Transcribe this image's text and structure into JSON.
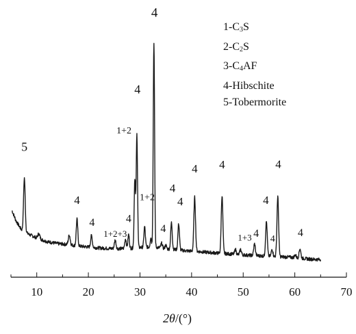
{
  "chart_data": {
    "type": "line",
    "xlabel": "2θ/(°)",
    "ylabel": "",
    "xlim": [
      5,
      70
    ],
    "x_ticks": [
      10,
      20,
      30,
      40,
      50,
      60,
      70
    ],
    "y_ticks_shown": false,
    "grid": false,
    "legend_position": "top-right",
    "legend": [
      {
        "prefix": "1-",
        "formula": [
          [
            "C",
            ""
          ],
          [
            "3",
            "sub"
          ],
          [
            "S",
            ""
          ]
        ]
      },
      {
        "prefix": "2-",
        "formula": [
          [
            "C",
            ""
          ],
          [
            "2",
            "sub"
          ],
          [
            "S",
            ""
          ]
        ]
      },
      {
        "prefix": "3-",
        "formula": [
          [
            "C",
            ""
          ],
          [
            "4",
            "sub"
          ],
          [
            "AF",
            ""
          ]
        ]
      },
      {
        "prefix": "4-",
        "formula": [
          [
            "Hibschite",
            ""
          ]
        ]
      },
      {
        "prefix": "5-",
        "formula": [
          [
            "Tobermorite",
            ""
          ]
        ]
      }
    ],
    "series": [
      {
        "color": "#1a1a1a",
        "baseline_points": [
          [
            5.2,
            0.218
          ],
          [
            6,
            0.175
          ],
          [
            7,
            0.14
          ],
          [
            8.5,
            0.12
          ],
          [
            10,
            0.105
          ],
          [
            12,
            0.09
          ],
          [
            14,
            0.082
          ],
          [
            16,
            0.078
          ],
          [
            18,
            0.072
          ],
          [
            20,
            0.068
          ],
          [
            22,
            0.064
          ],
          [
            24,
            0.062
          ],
          [
            26,
            0.061
          ],
          [
            28,
            0.062
          ],
          [
            30,
            0.066
          ],
          [
            32,
            0.068
          ],
          [
            33.5,
            0.066
          ],
          [
            35,
            0.06
          ],
          [
            37,
            0.057
          ],
          [
            39,
            0.052
          ],
          [
            41,
            0.05
          ],
          [
            43,
            0.046
          ],
          [
            45,
            0.043
          ],
          [
            47,
            0.04
          ],
          [
            49,
            0.037
          ],
          [
            51,
            0.034
          ],
          [
            53,
            0.032
          ],
          [
            55,
            0.03
          ],
          [
            57,
            0.028
          ],
          [
            59,
            0.026
          ],
          [
            61,
            0.022
          ],
          [
            63,
            0.018
          ],
          [
            65,
            0.016
          ]
        ],
        "peaks": [
          {
            "x": 7.6,
            "height": 0.22,
            "width": 0.16
          },
          {
            "x": 10.4,
            "height": 0.02,
            "width": 0.2
          },
          {
            "x": 16.3,
            "height": 0.04,
            "width": 0.18
          },
          {
            "x": 17.8,
            "height": 0.11,
            "width": 0.15
          },
          {
            "x": 20.6,
            "height": 0.048,
            "width": 0.16
          },
          {
            "x": 25.2,
            "height": 0.035,
            "width": 0.16
          },
          {
            "x": 27.2,
            "height": 0.04,
            "width": 0.15
          },
          {
            "x": 27.8,
            "height": 0.058,
            "width": 0.14
          },
          {
            "x": 29.0,
            "height": 0.285,
            "width": 0.13
          },
          {
            "x": 29.4,
            "height": 0.465,
            "width": 0.13
          },
          {
            "x": 30.9,
            "height": 0.085,
            "width": 0.14
          },
          {
            "x": 32.1,
            "height": 0.04,
            "width": 0.12
          },
          {
            "x": 32.7,
            "height": 0.845,
            "width": 0.13
          },
          {
            "x": 34.2,
            "height": 0.02,
            "width": 0.15
          },
          {
            "x": 35.0,
            "height": 0.015,
            "width": 0.15
          },
          {
            "x": 36.1,
            "height": 0.11,
            "width": 0.15
          },
          {
            "x": 37.5,
            "height": 0.108,
            "width": 0.15
          },
          {
            "x": 40.6,
            "height": 0.222,
            "width": 0.16
          },
          {
            "x": 45.9,
            "height": 0.237,
            "width": 0.16
          },
          {
            "x": 48.5,
            "height": 0.02,
            "width": 0.15
          },
          {
            "x": 49.5,
            "height": 0.022,
            "width": 0.15
          },
          {
            "x": 52.2,
            "height": 0.048,
            "width": 0.16
          },
          {
            "x": 54.5,
            "height": 0.142,
            "width": 0.16
          },
          {
            "x": 55.6,
            "height": 0.03,
            "width": 0.15
          },
          {
            "x": 56.7,
            "height": 0.247,
            "width": 0.16
          },
          {
            "x": 60.1,
            "height": 0.012,
            "width": 0.16
          },
          {
            "x": 61.0,
            "height": 0.04,
            "width": 0.16
          }
        ]
      }
    ],
    "peak_labels": [
      {
        "text": "5",
        "x": 7.6,
        "y": 0.463,
        "size": 18
      },
      {
        "text": "4",
        "x": 17.8,
        "y": 0.245,
        "size": 17
      },
      {
        "text": "4",
        "x": 20.7,
        "y": 0.155,
        "size": 16
      },
      {
        "text": "1+2+3",
        "x": 25.2,
        "y": 0.11,
        "size": 13
      },
      {
        "text": "4",
        "x": 27.8,
        "y": 0.17,
        "size": 16
      },
      {
        "text": "1+2",
        "x": 26.9,
        "y": 0.535,
        "size": 14
      },
      {
        "text": "4",
        "x": 29.5,
        "y": 0.7,
        "size": 18
      },
      {
        "text": "1+2",
        "x": 31.4,
        "y": 0.26,
        "size": 14
      },
      {
        "text": "4",
        "x": 32.8,
        "y": 1.015,
        "size": 19
      },
      {
        "text": "4",
        "x": 34.5,
        "y": 0.13,
        "size": 16
      },
      {
        "text": "4",
        "x": 36.3,
        "y": 0.295,
        "size": 17
      },
      {
        "text": "4",
        "x": 37.8,
        "y": 0.24,
        "size": 17
      },
      {
        "text": "4",
        "x": 40.6,
        "y": 0.375,
        "size": 17
      },
      {
        "text": "4",
        "x": 45.9,
        "y": 0.392,
        "size": 17
      },
      {
        "text": "1+3",
        "x": 50.3,
        "y": 0.095,
        "size": 13
      },
      {
        "text": "4",
        "x": 52.5,
        "y": 0.11,
        "size": 16
      },
      {
        "text": "4",
        "x": 54.4,
        "y": 0.245,
        "size": 17
      },
      {
        "text": "4",
        "x": 55.7,
        "y": 0.09,
        "size": 14
      },
      {
        "text": "4",
        "x": 56.8,
        "y": 0.393,
        "size": 17
      },
      {
        "text": "4",
        "x": 61.1,
        "y": 0.112,
        "size": 16
      }
    ]
  }
}
